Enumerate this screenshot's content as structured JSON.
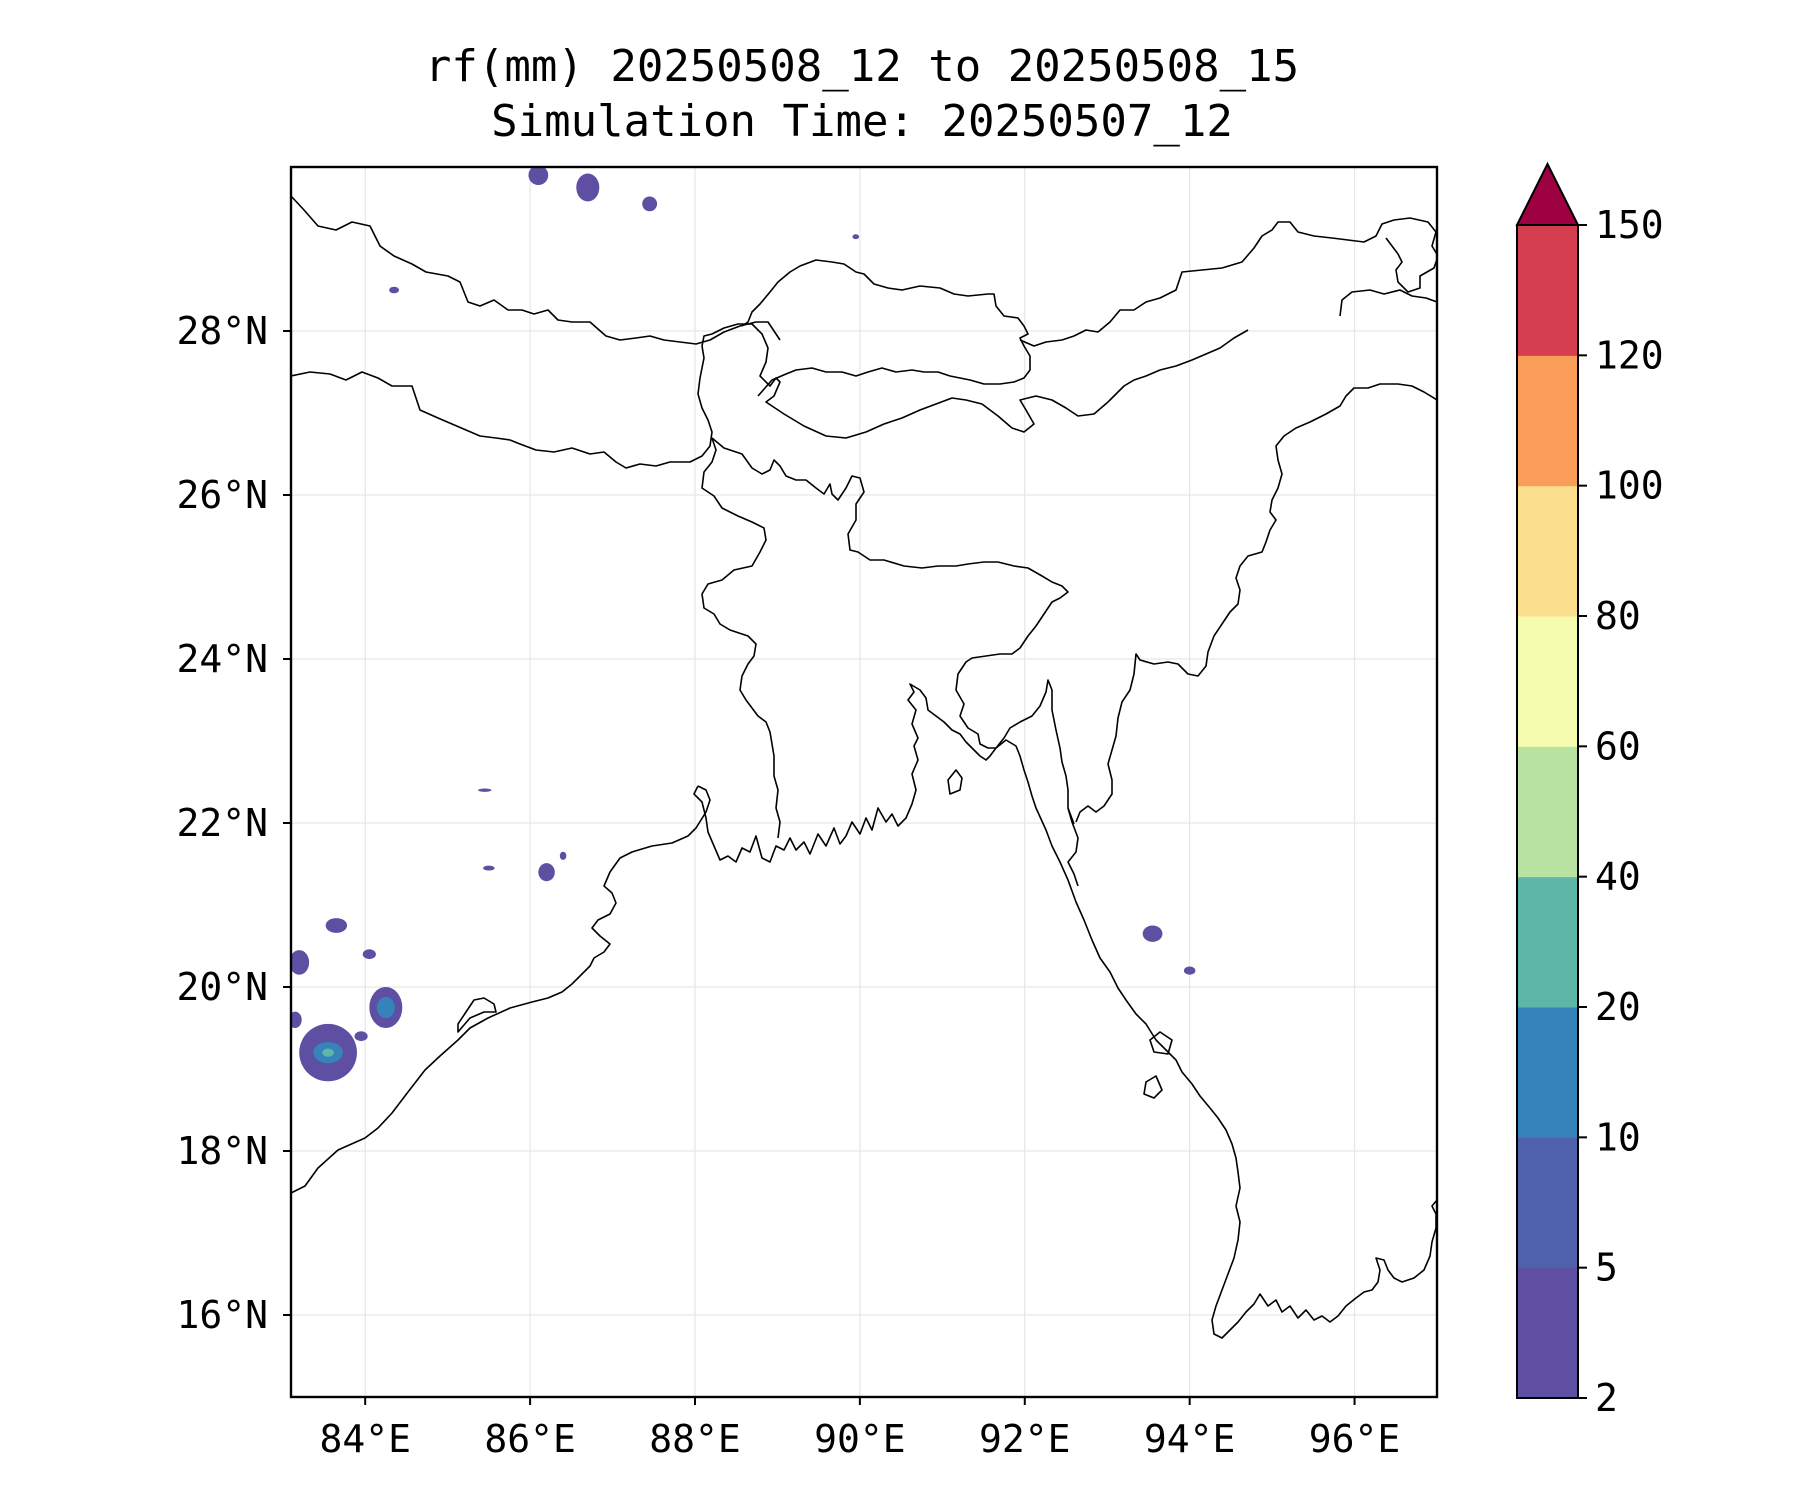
{
  "title": {
    "line1": "rf(mm) 20250508_12 to 20250508_15",
    "line2": "Simulation Time: 20250507_12"
  },
  "map": {
    "projection": "PlateCarree",
    "lon_range": [
      83.1,
      97.0
    ],
    "lat_range": [
      15.0,
      30.0
    ],
    "lon_ticks": [
      {
        "value": 84,
        "label": "84°E"
      },
      {
        "value": 86,
        "label": "86°E"
      },
      {
        "value": 88,
        "label": "88°E"
      },
      {
        "value": 90,
        "label": "90°E"
      },
      {
        "value": 92,
        "label": "92°E"
      },
      {
        "value": 94,
        "label": "94°E"
      },
      {
        "value": 96,
        "label": "96°E"
      }
    ],
    "lat_ticks": [
      {
        "value": 28,
        "label": "28°N"
      },
      {
        "value": 26,
        "label": "26°N"
      },
      {
        "value": 24,
        "label": "24°N"
      },
      {
        "value": 22,
        "label": "22°N"
      },
      {
        "value": 20,
        "label": "20°N"
      },
      {
        "value": 18,
        "label": "18°N"
      },
      {
        "value": 16,
        "label": "16°N"
      }
    ],
    "gridlines": true,
    "features": [
      "coastline",
      "country-borders"
    ]
  },
  "rain_cells": [
    {
      "lon": 83.55,
      "lat": 19.2,
      "rx": 0.35,
      "ry": 0.35,
      "level": "2-5"
    },
    {
      "lon": 83.55,
      "lat": 19.2,
      "rx": 0.18,
      "ry": 0.13,
      "level": "10-20"
    },
    {
      "lon": 83.55,
      "lat": 19.2,
      "rx": 0.07,
      "ry": 0.05,
      "level": "20-40"
    },
    {
      "lon": 84.25,
      "lat": 19.75,
      "rx": 0.2,
      "ry": 0.25,
      "level": "2-5"
    },
    {
      "lon": 84.25,
      "lat": 19.75,
      "rx": 0.11,
      "ry": 0.13,
      "level": "10-20"
    },
    {
      "lon": 83.65,
      "lat": 20.75,
      "rx": 0.13,
      "ry": 0.09,
      "level": "2-5"
    },
    {
      "lon": 83.2,
      "lat": 20.3,
      "rx": 0.12,
      "ry": 0.15,
      "level": "2-5"
    },
    {
      "lon": 83.15,
      "lat": 19.6,
      "rx": 0.08,
      "ry": 0.1,
      "level": "2-5"
    },
    {
      "lon": 84.05,
      "lat": 20.4,
      "rx": 0.08,
      "ry": 0.06,
      "level": "2-5"
    },
    {
      "lon": 83.95,
      "lat": 19.4,
      "rx": 0.08,
      "ry": 0.06,
      "level": "2-5"
    },
    {
      "lon": 86.2,
      "lat": 21.4,
      "rx": 0.1,
      "ry": 0.11,
      "level": "2-5"
    },
    {
      "lon": 86.4,
      "lat": 21.6,
      "rx": 0.04,
      "ry": 0.05,
      "level": "2-5"
    },
    {
      "lon": 85.5,
      "lat": 21.45,
      "rx": 0.07,
      "ry": 0.03,
      "level": "2-5"
    },
    {
      "lon": 85.45,
      "lat": 22.4,
      "rx": 0.08,
      "ry": 0.02,
      "level": "2-5"
    },
    {
      "lon": 86.1,
      "lat": 29.9,
      "rx": 0.12,
      "ry": 0.12,
      "level": "2-5"
    },
    {
      "lon": 86.7,
      "lat": 29.75,
      "rx": 0.14,
      "ry": 0.17,
      "level": "2-5"
    },
    {
      "lon": 87.45,
      "lat": 29.55,
      "rx": 0.09,
      "ry": 0.09,
      "level": "2-5"
    },
    {
      "lon": 89.95,
      "lat": 29.15,
      "rx": 0.04,
      "ry": 0.03,
      "level": "2-5"
    },
    {
      "lon": 84.35,
      "lat": 28.5,
      "rx": 0.06,
      "ry": 0.04,
      "level": "2-5"
    },
    {
      "lon": 93.55,
      "lat": 20.65,
      "rx": 0.12,
      "ry": 0.1,
      "level": "2-5"
    },
    {
      "lon": 94.0,
      "lat": 20.2,
      "rx": 0.07,
      "ry": 0.05,
      "level": "2-5"
    }
  ],
  "colorbar": {
    "levels": [
      2,
      5,
      10,
      20,
      40,
      60,
      80,
      100,
      120,
      150
    ],
    "labels": [
      "2",
      "5",
      "10",
      "20",
      "40",
      "60",
      "80",
      "100",
      "120",
      "150"
    ],
    "colors": [
      "#5e4fa2",
      "#4f61ab",
      "#3682ba",
      "#5db7a9",
      "#b9e3a0",
      "#f5fbaf",
      "#fbdf8e",
      "#f99d59",
      "#d53e4f"
    ],
    "extend_color": "#9e0142",
    "extend": "max"
  }
}
